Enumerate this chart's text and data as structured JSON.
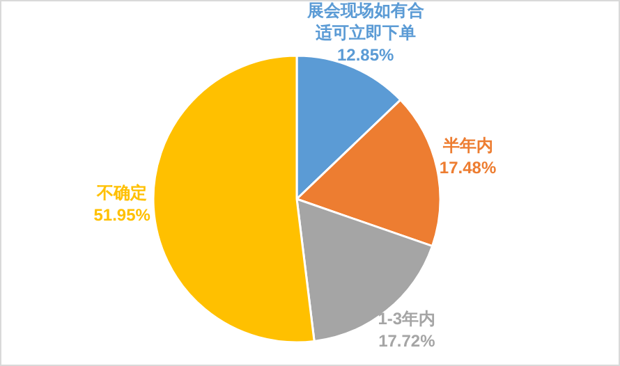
{
  "chart_data": {
    "type": "pie",
    "categories": [
      "展会现场如有合适可立即下单",
      "半年内",
      "1-3年内",
      "不确定"
    ],
    "values": [
      12.85,
      17.48,
      17.72,
      51.95
    ],
    "value_labels": [
      "12.85%",
      "17.48%",
      "17.72%",
      "51.95%"
    ],
    "colors": [
      "#5b9bd5",
      "#ed7d31",
      "#a5a5a5",
      "#ffc000"
    ]
  }
}
